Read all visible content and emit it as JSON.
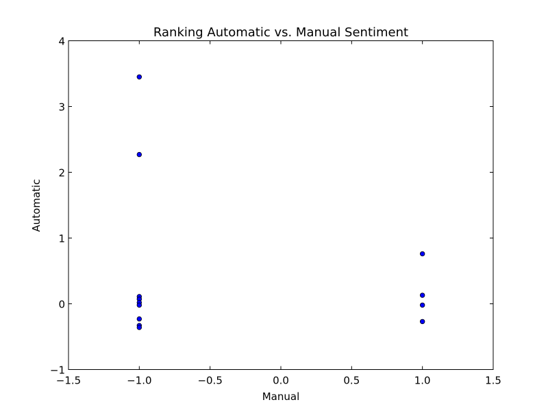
{
  "chart_data": {
    "type": "scatter",
    "title": "Ranking Automatic vs. Manual Sentiment",
    "xlabel": "Manual",
    "ylabel": "Automatic",
    "xlim": [
      -1.5,
      1.5
    ],
    "ylim": [
      -1,
      4
    ],
    "xticks": [
      -1.5,
      -1.0,
      -0.5,
      0.0,
      0.5,
      1.0,
      1.5
    ],
    "xtick_labels": [
      "−1.5",
      "−1.0",
      "−0.5",
      "0.0",
      "0.5",
      "1.0",
      "1.5"
    ],
    "yticks": [
      -1,
      0,
      1,
      2,
      3,
      4
    ],
    "ytick_labels": [
      "−1",
      "0",
      "1",
      "2",
      "3",
      "4"
    ],
    "grid": false,
    "marker_color": "#0000ff",
    "points": [
      {
        "x": -1.0,
        "y": 3.45
      },
      {
        "x": -1.0,
        "y": 2.27
      },
      {
        "x": -1.0,
        "y": 0.11
      },
      {
        "x": -1.0,
        "y": 0.07
      },
      {
        "x": -1.0,
        "y": 0.02
      },
      {
        "x": -1.0,
        "y": -0.02
      },
      {
        "x": -1.0,
        "y": -0.23
      },
      {
        "x": -1.0,
        "y": -0.33
      },
      {
        "x": -1.0,
        "y": -0.36
      },
      {
        "x": 1.0,
        "y": 0.76
      },
      {
        "x": 1.0,
        "y": 0.13
      },
      {
        "x": 1.0,
        "y": -0.02
      },
      {
        "x": 1.0,
        "y": -0.27
      }
    ]
  }
}
